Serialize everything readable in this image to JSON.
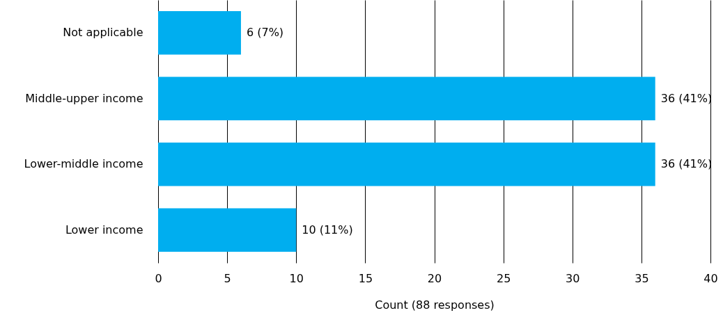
{
  "chart_data": {
    "type": "bar",
    "orientation": "horizontal",
    "xlabel": "Count (88 responses)",
    "categories": [
      "Not applicable",
      "Middle-upper income",
      "Lower-middle income",
      "Lower income"
    ],
    "values": [
      6,
      36,
      36,
      10
    ],
    "color": "#00aeef",
    "value_labels": [
      "6 (7%)",
      "36 (41%)",
      "36 (41%)",
      "10 (11%)"
    ],
    "xlim": [
      0,
      40
    ],
    "xticks": [
      0,
      5,
      10,
      15,
      20,
      25,
      30,
      35,
      40
    ],
    "grid": "x"
  }
}
